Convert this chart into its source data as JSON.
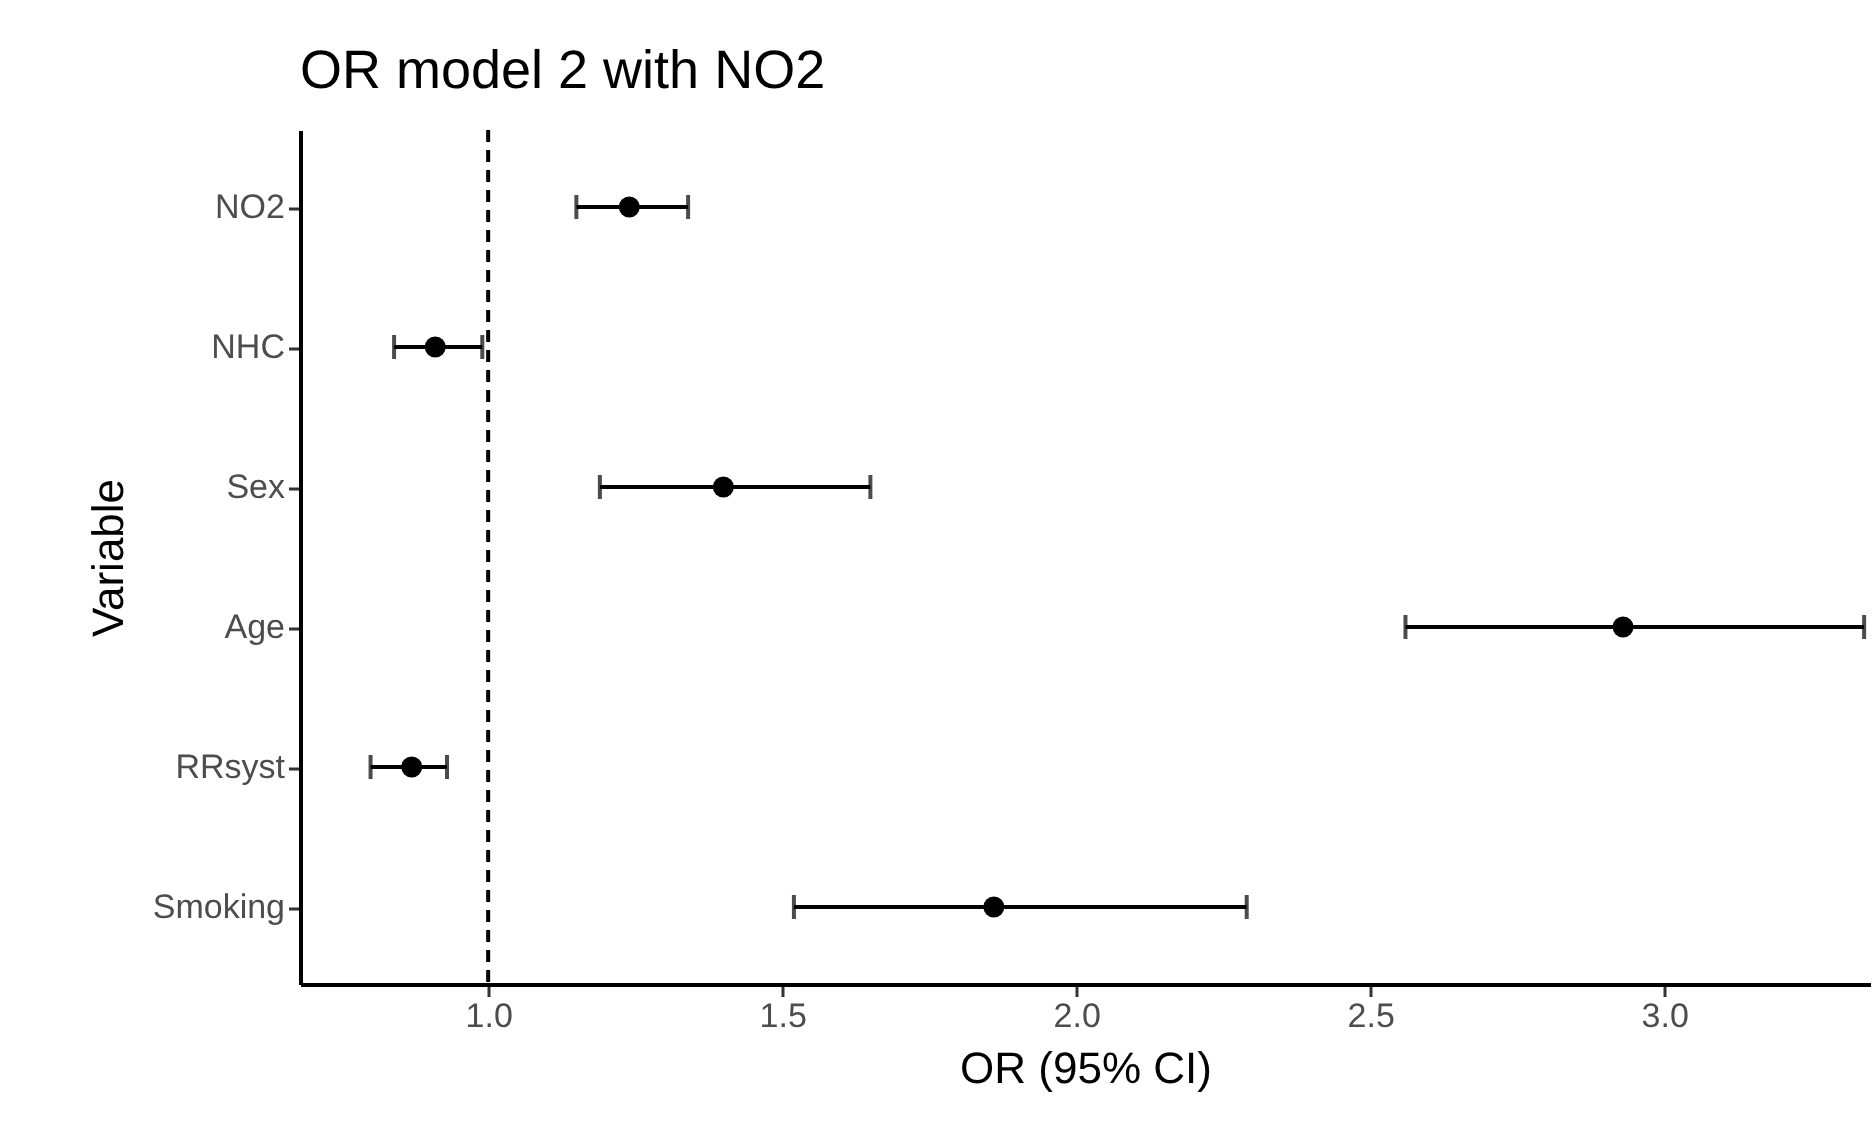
{
  "chart_data": {
    "type": "scatter",
    "orientation": "horizontal",
    "title": "OR model 2 with NO2",
    "xlabel": "OR (95% CI)",
    "ylabel": "Variable",
    "categories": [
      "NO2",
      "NHC",
      "Sex",
      "Age",
      "RRsyst",
      "Smoking"
    ],
    "values": [
      1.24,
      0.91,
      1.4,
      2.93,
      0.87,
      1.86
    ],
    "errors": [
      [
        1.15,
        1.34
      ],
      [
        0.84,
        0.99
      ],
      [
        1.19,
        1.65
      ],
      [
        2.56,
        3.34
      ],
      [
        0.8,
        0.93
      ],
      [
        1.52,
        2.29
      ]
    ],
    "color": "#000000",
    "marker": "circle",
    "xlim": [
      0.68,
      3.35
    ],
    "xticks": [
      {
        "value": 1,
        "label": "1.0"
      },
      {
        "value": 1.5,
        "label": "1.5"
      },
      {
        "value": 2,
        "label": "2.0"
      },
      {
        "value": 2.5,
        "label": "2.5"
      },
      {
        "value": 3,
        "label": "3.0"
      }
    ],
    "ref_lines": [
      {
        "axis": "x",
        "value": 1,
        "line_style": "dashed"
      }
    ],
    "grid": false
  }
}
